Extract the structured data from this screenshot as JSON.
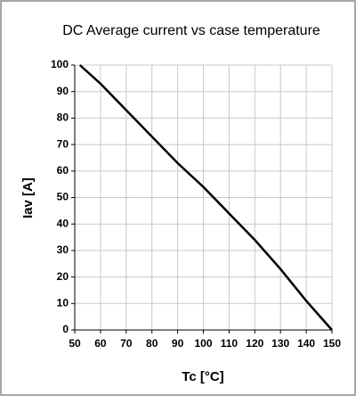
{
  "chart_data": {
    "type": "line",
    "title": "DC Average current vs case temperature",
    "x_label": "Tc [°C]",
    "y_label": "Iav  [A]",
    "x": [
      52,
      60,
      70,
      80,
      90,
      100,
      110,
      120,
      130,
      140,
      150
    ],
    "series": [
      {
        "name": "Iav",
        "color": "#000000",
        "values": [
          100,
          93,
          83,
          73,
          63,
          54,
          44,
          34,
          23,
          11,
          0
        ]
      }
    ],
    "xlim": [
      50,
      150
    ],
    "xticks": [
      50,
      60,
      70,
      80,
      90,
      100,
      110,
      120,
      130,
      140,
      150
    ],
    "ylim": [
      0,
      100
    ],
    "yticks": [
      0,
      10,
      20,
      30,
      40,
      50,
      60,
      70,
      80,
      90,
      100
    ],
    "grid": true,
    "legend": false
  }
}
